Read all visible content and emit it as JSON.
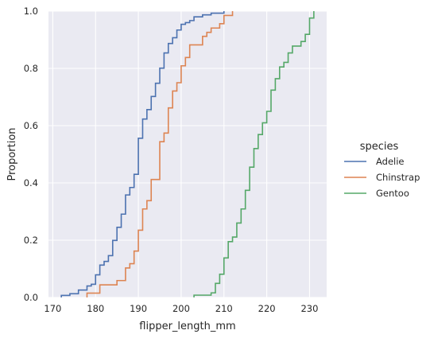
{
  "chart_data": {
    "type": "line",
    "subtype": "ecdf-step",
    "xlabel": "flipper_length_mm",
    "ylabel": "Proportion",
    "xlim": [
      169,
      234
    ],
    "ylim": [
      0,
      1
    ],
    "xticks": [
      170,
      180,
      190,
      200,
      210,
      220,
      230
    ],
    "yticks": [
      0.0,
      0.2,
      0.4,
      0.6,
      0.8,
      1.0
    ],
    "ytick_labels": [
      "0.0",
      "0.2",
      "0.4",
      "0.6",
      "0.8",
      "1.0"
    ],
    "grid": true,
    "background": "#EAEAF2",
    "legend": {
      "title": "species",
      "placement": "right"
    },
    "series": [
      {
        "name": "Adelie",
        "color": "#4C72B0",
        "x": [
          172,
          174,
          176,
          178,
          179,
          180,
          181,
          182,
          183,
          184,
          185,
          186,
          187,
          188,
          189,
          190,
          191,
          192,
          193,
          194,
          195,
          196,
          197,
          198,
          199,
          200,
          201,
          202,
          203,
          205,
          207,
          208,
          210
        ],
        "y": [
          0.007,
          0.013,
          0.026,
          0.04,
          0.046,
          0.079,
          0.113,
          0.126,
          0.146,
          0.199,
          0.245,
          0.291,
          0.358,
          0.384,
          0.43,
          0.556,
          0.623,
          0.656,
          0.702,
          0.748,
          0.801,
          0.854,
          0.887,
          0.907,
          0.934,
          0.954,
          0.96,
          0.967,
          0.98,
          0.987,
          0.993,
          0.993,
          1.0
        ]
      },
      {
        "name": "Chinstrap",
        "color": "#DD8452",
        "x": [
          178,
          181,
          185,
          187,
          188,
          189,
          190,
          191,
          192,
          193,
          195,
          196,
          197,
          198,
          199,
          200,
          201,
          202,
          203,
          205,
          206,
          207,
          209,
          210,
          212
        ],
        "y": [
          0.015,
          0.044,
          0.059,
          0.103,
          0.118,
          0.162,
          0.235,
          0.309,
          0.338,
          0.412,
          0.544,
          0.574,
          0.662,
          0.721,
          0.75,
          0.809,
          0.838,
          0.882,
          0.882,
          0.912,
          0.926,
          0.941,
          0.956,
          0.985,
          1.0
        ]
      },
      {
        "name": "Gentoo",
        "color": "#55A868",
        "x": [
          203,
          207,
          208,
          209,
          210,
          211,
          212,
          213,
          214,
          215,
          216,
          217,
          218,
          219,
          220,
          221,
          222,
          223,
          224,
          225,
          226,
          228,
          229,
          230,
          231
        ],
        "y": [
          0.008,
          0.016,
          0.049,
          0.081,
          0.138,
          0.195,
          0.211,
          0.26,
          0.309,
          0.374,
          0.455,
          0.52,
          0.569,
          0.61,
          0.65,
          0.724,
          0.764,
          0.805,
          0.821,
          0.854,
          0.878,
          0.894,
          0.919,
          0.976,
          1.0
        ]
      }
    ]
  }
}
